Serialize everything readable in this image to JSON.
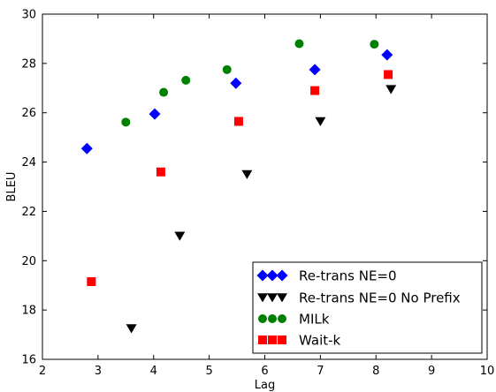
{
  "chart_data": {
    "type": "scatter",
    "xlabel": "Lag",
    "ylabel": "BLEU",
    "xlim": [
      2,
      10
    ],
    "ylim": [
      16,
      30
    ],
    "xticks": [
      "2",
      "3",
      "4",
      "5",
      "6",
      "7",
      "8",
      "9",
      "10"
    ],
    "yticks": [
      "16",
      "18",
      "20",
      "22",
      "24",
      "26",
      "28",
      "30"
    ],
    "grid": false,
    "legend_position": "bottom-right",
    "series": [
      {
        "name": "Re-trans NE=0",
        "marker": "diamond",
        "color": "#0000ff",
        "points": [
          {
            "x": 2.8,
            "y": 24.55
          },
          {
            "x": 4.02,
            "y": 25.95
          },
          {
            "x": 5.48,
            "y": 27.2
          },
          {
            "x": 6.9,
            "y": 27.75
          },
          {
            "x": 8.2,
            "y": 28.35
          }
        ]
      },
      {
        "name": "Re-trans NE=0 No Prefix",
        "marker": "triangle-down",
        "color": "#000000",
        "points": [
          {
            "x": 3.6,
            "y": 17.25
          },
          {
            "x": 4.47,
            "y": 21.0
          },
          {
            "x": 5.68,
            "y": 23.5
          },
          {
            "x": 7.0,
            "y": 25.65
          },
          {
            "x": 8.27,
            "y": 26.95
          }
        ]
      },
      {
        "name": "MILk",
        "marker": "circle",
        "color": "#008000",
        "points": [
          {
            "x": 3.5,
            "y": 25.62
          },
          {
            "x": 4.18,
            "y": 26.83
          },
          {
            "x": 4.58,
            "y": 27.32
          },
          {
            "x": 5.32,
            "y": 27.75
          },
          {
            "x": 6.62,
            "y": 28.8
          },
          {
            "x": 7.97,
            "y": 28.78
          }
        ]
      },
      {
        "name": "Wait-k",
        "marker": "square",
        "color": "#ff0000",
        "points": [
          {
            "x": 2.88,
            "y": 19.15
          },
          {
            "x": 4.13,
            "y": 23.6
          },
          {
            "x": 5.53,
            "y": 25.65
          },
          {
            "x": 6.9,
            "y": 26.9
          },
          {
            "x": 8.22,
            "y": 27.55
          }
        ]
      }
    ]
  }
}
